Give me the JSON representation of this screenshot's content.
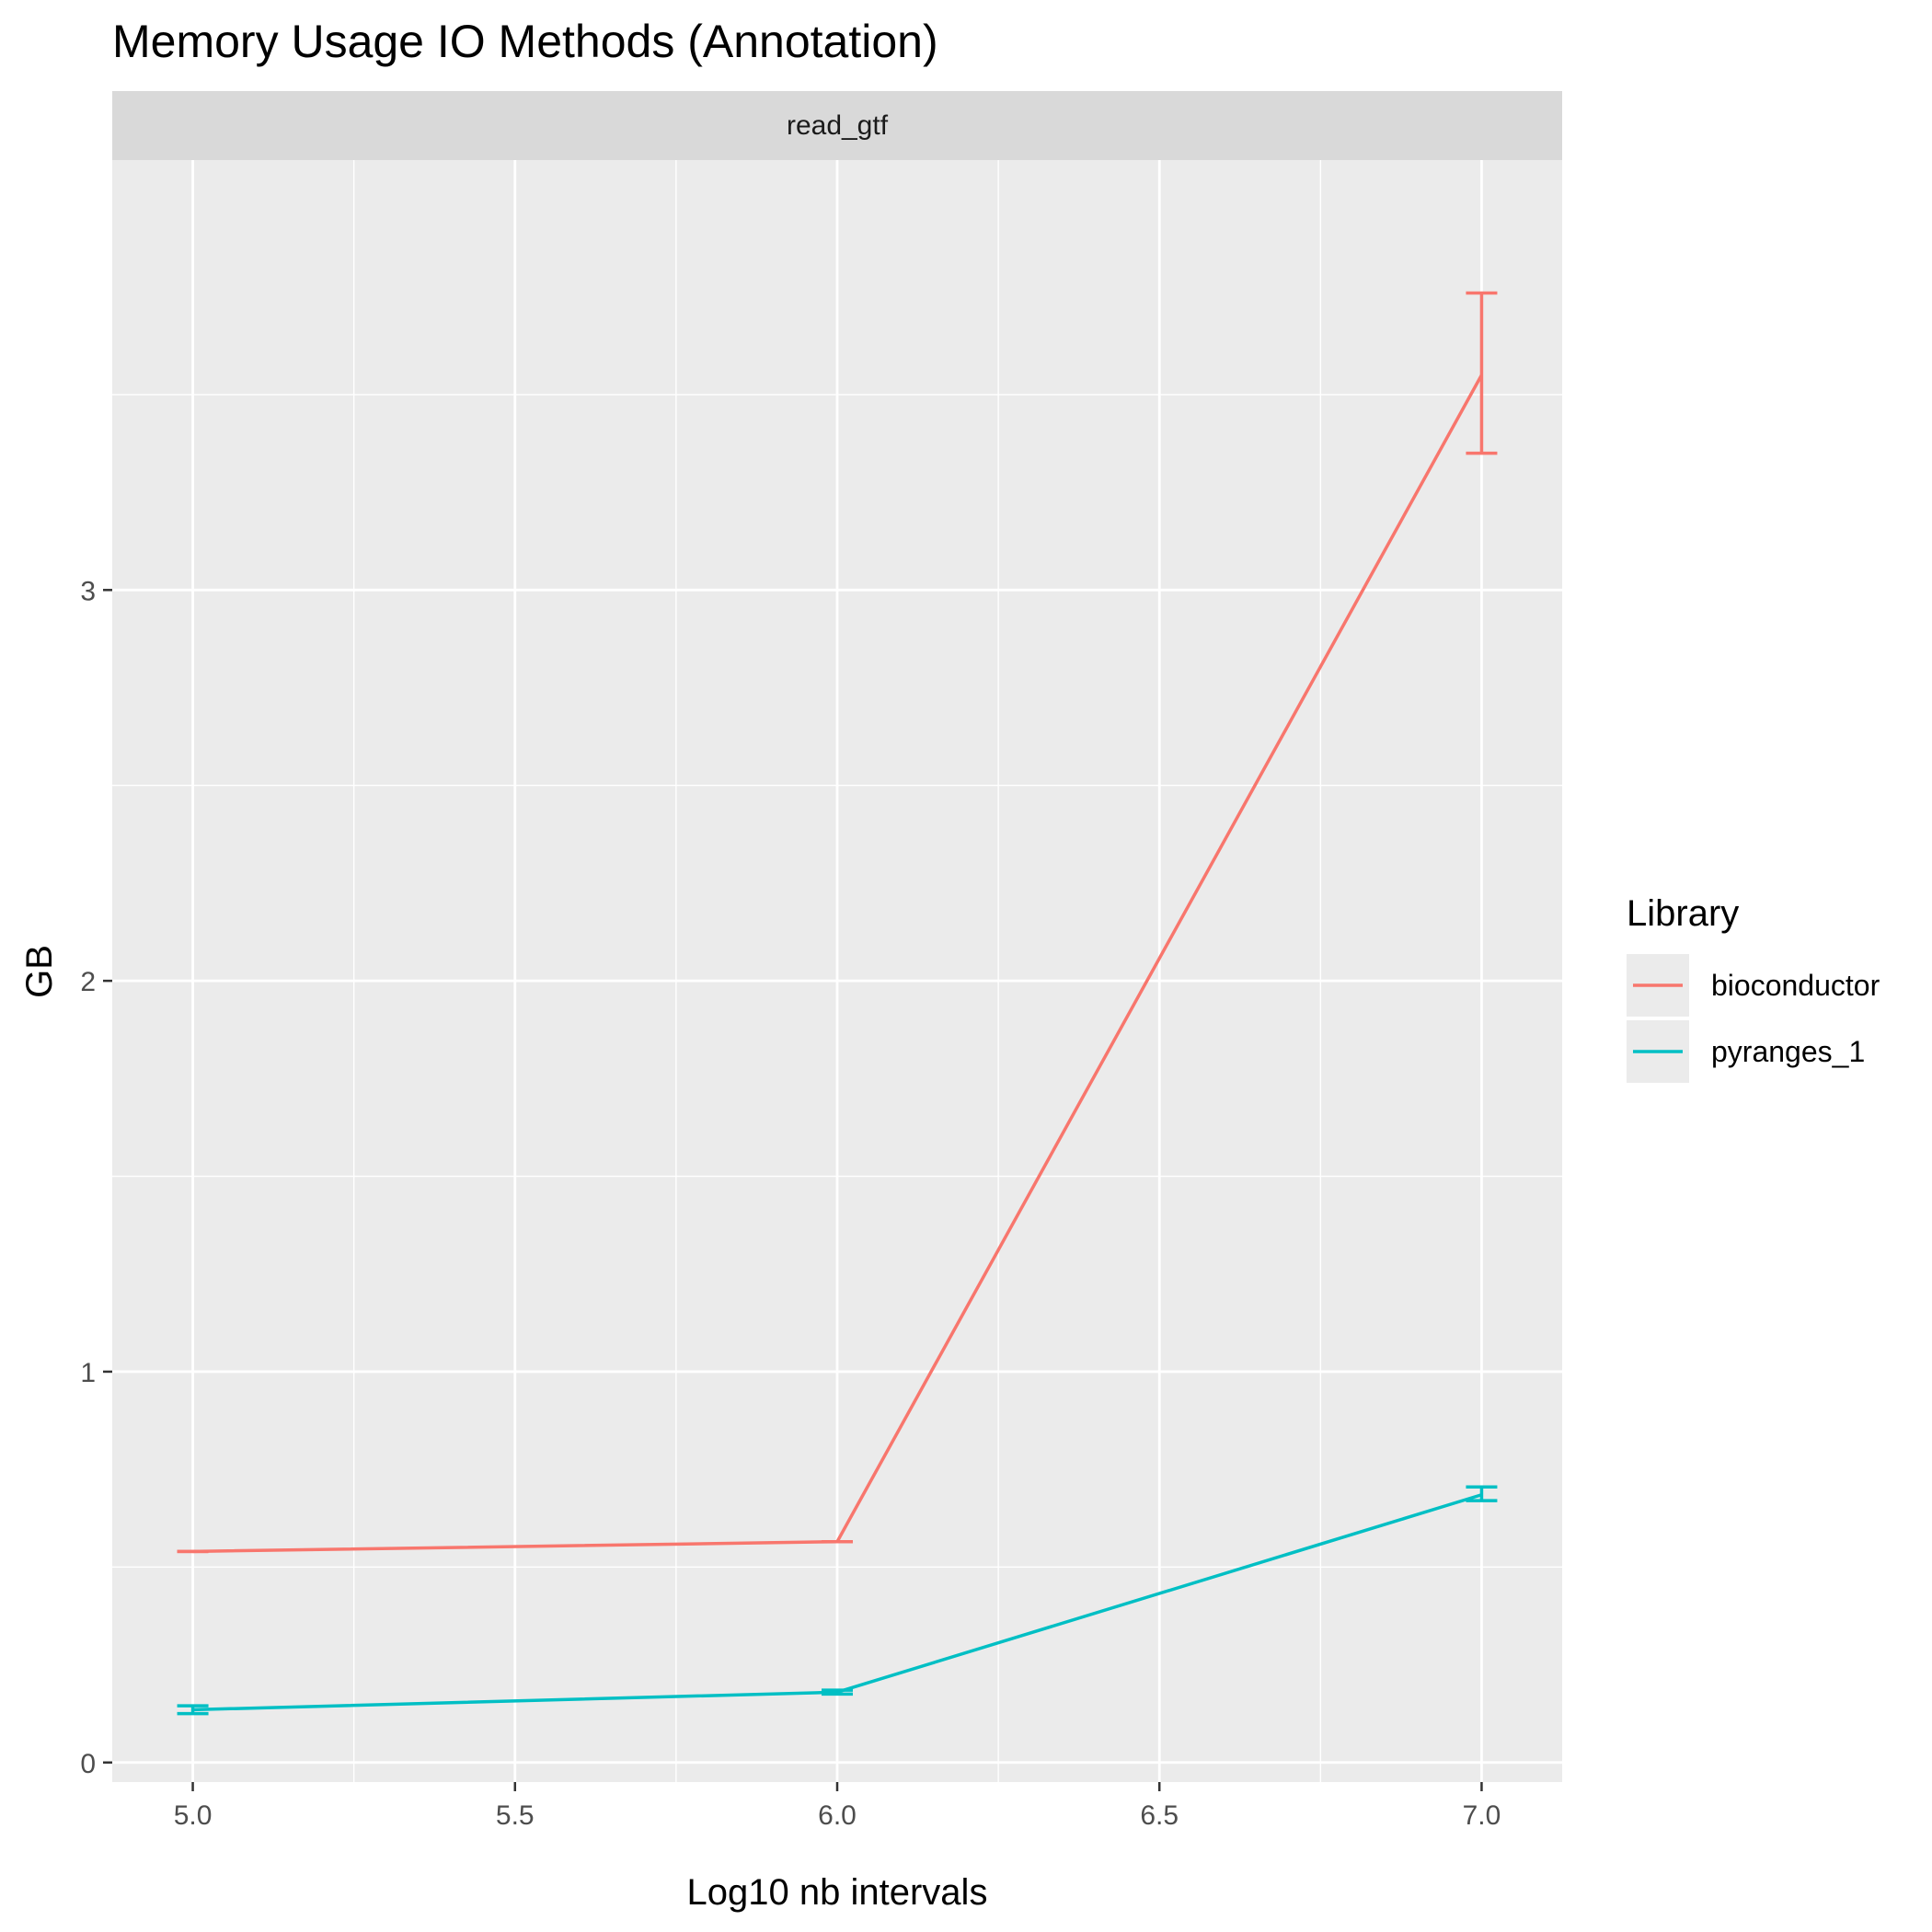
{
  "chart_data": {
    "type": "line",
    "title": "Memory Usage IO Methods (Annotation)",
    "facet_label": "read_gtf",
    "xlabel": "Log10 nb intervals",
    "ylabel": "GB",
    "xlim": [
      4.875,
      7.125
    ],
    "ylim": [
      -0.05,
      4.1
    ],
    "x_ticks": [
      5.0,
      5.5,
      6.0,
      6.5,
      7.0
    ],
    "x_tick_labels": [
      "5.0",
      "5.5",
      "6.0",
      "6.5",
      "7.0"
    ],
    "y_ticks": [
      0,
      1,
      2,
      3
    ],
    "y_tick_labels": [
      "0",
      "1",
      "2",
      "3"
    ],
    "grid": true,
    "legend": {
      "title": "Library",
      "position": "right"
    },
    "series": [
      {
        "name": "bioconductor",
        "color": "#F8766D",
        "x": [
          5.0,
          6.0,
          7.0
        ],
        "y": [
          0.54,
          0.565,
          3.55
        ],
        "error_low": [
          0.54,
          0.565,
          3.35
        ],
        "error_high": [
          0.54,
          0.565,
          3.76
        ]
      },
      {
        "name": "pyranges_1",
        "color": "#00BFC4",
        "x": [
          5.0,
          6.0,
          7.0
        ],
        "y": [
          0.135,
          0.18,
          0.685
        ],
        "error_low": [
          0.125,
          0.175,
          0.67
        ],
        "error_high": [
          0.145,
          0.185,
          0.705
        ]
      }
    ]
  }
}
